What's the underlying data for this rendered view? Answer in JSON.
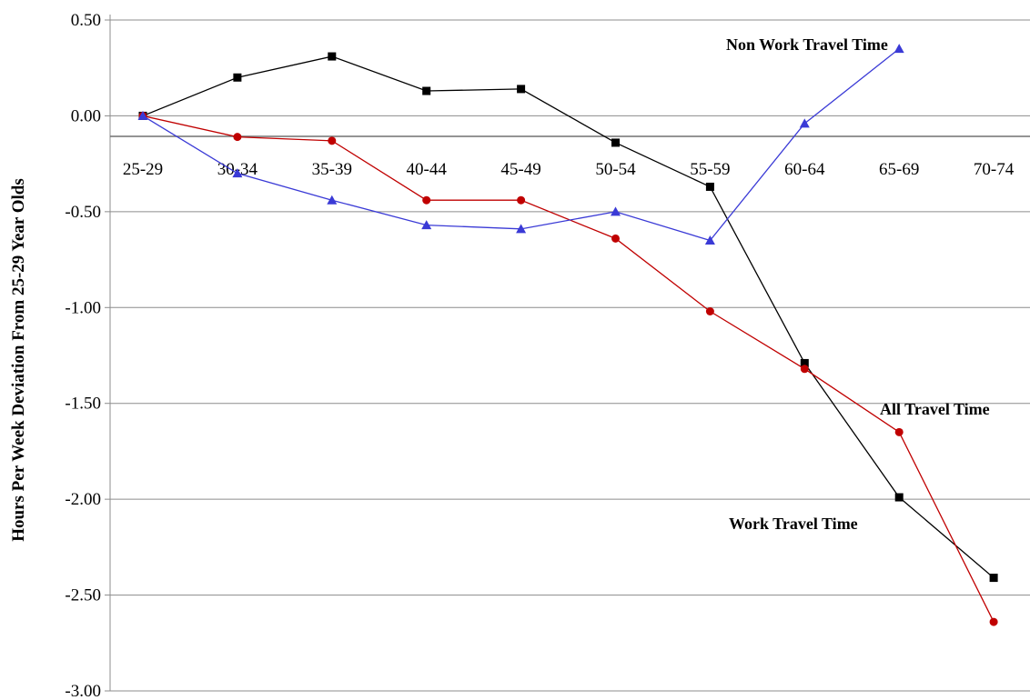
{
  "chart_data": {
    "type": "line",
    "title": "",
    "xlabel": "",
    "ylabel": "Hours Per Week Deviation From 25-29 Year Olds",
    "categories": [
      "25-29",
      "30-34",
      "35-39",
      "40-44",
      "45-49",
      "50-54",
      "55-59",
      "60-64",
      "65-69",
      "70-74"
    ],
    "ylim": [
      -3.0,
      0.5
    ],
    "yticks": [
      "0.50",
      "0.00",
      "-0.50",
      "-1.00",
      "-1.50",
      "-2.00",
      "-2.50",
      "-3.00"
    ],
    "grid": true,
    "series": [
      {
        "name": "Work Travel Time",
        "color": "#000000",
        "marker": "square",
        "values": [
          0.0,
          0.2,
          0.31,
          0.13,
          0.14,
          -0.14,
          -0.37,
          -1.29,
          -1.99,
          -2.41
        ]
      },
      {
        "name": "All Travel Time",
        "color": "#c00000",
        "marker": "circle",
        "values": [
          0.0,
          -0.11,
          -0.13,
          -0.44,
          -0.44,
          -0.64,
          -1.02,
          -1.32,
          -1.65,
          -2.64
        ]
      },
      {
        "name": "Non Work Travel Time",
        "color": "#3a3ad6",
        "marker": "triangle",
        "values": [
          0.0,
          -0.3,
          -0.44,
          -0.57,
          -0.59,
          -0.5,
          -0.65,
          -0.04,
          0.35,
          null
        ]
      }
    ]
  }
}
